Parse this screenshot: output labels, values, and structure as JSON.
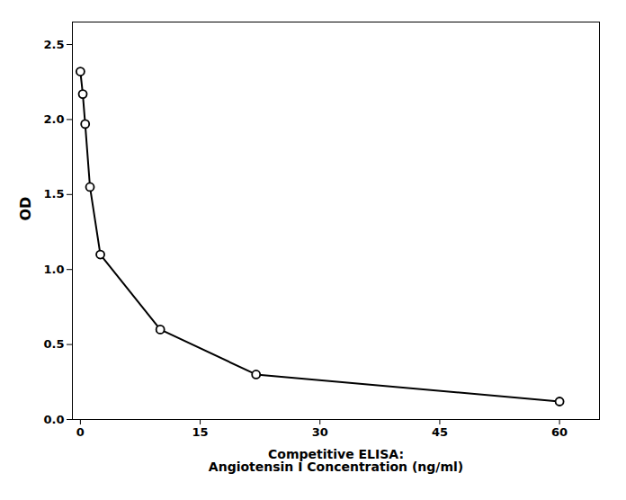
{
  "chart_data": {
    "type": "line",
    "x": [
      0,
      0.3,
      0.6,
      1.2,
      2.5,
      10,
      22,
      60
    ],
    "values": [
      2.32,
      2.17,
      1.97,
      1.55,
      1.1,
      0.6,
      0.3,
      0.12
    ],
    "xlabel": "Competitive ELISA:\nAngiotensin I Concentration (ng/ml)",
    "ylabel": "OD",
    "xlim": [
      -1,
      65
    ],
    "ylim": [
      0,
      2.65
    ],
    "xticks": [
      0,
      15,
      30,
      45,
      60
    ],
    "yticks": [
      {
        "value": 0,
        "label": "0.0"
      },
      0.5,
      {
        "value": 1.0,
        "label": "1.0"
      },
      1.5,
      {
        "value": 2.0,
        "label": "2.0"
      },
      2.5
    ],
    "color": "#000000",
    "marker": "circle",
    "grid": false
  }
}
